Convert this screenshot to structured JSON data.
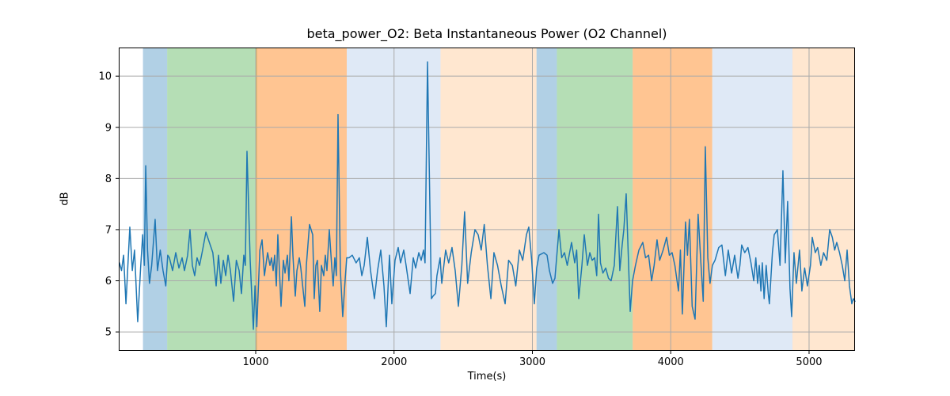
{
  "title": "beta_power_O2: Beta Instantaneous Power (O2 Channel)",
  "chart_data": {
    "type": "line",
    "title": "beta_power_O2: Beta Instantaneous Power (O2 Channel)",
    "xlabel": "Time(s)",
    "ylabel": "dB",
    "xlim": [
      10,
      5332
    ],
    "ylim": [
      4.63,
      10.56
    ],
    "xticks": [
      1000,
      2000,
      3000,
      4000,
      5000
    ],
    "yticks": [
      5,
      6,
      7,
      8,
      9,
      10
    ],
    "grid": true,
    "grid_color": "#aaaaaa",
    "line_color": "#1f77b4",
    "spine_color": "#000000",
    "bands": [
      {
        "color_name": "blue",
        "color": "rgba(31,119,180,0.35)",
        "start": 185,
        "end": 360
      },
      {
        "color_name": "green",
        "color": "rgba(44,160,44,0.35)",
        "start": 360,
        "end": 1010
      },
      {
        "color_name": "orange",
        "color": "rgba(255,127,14,0.45)",
        "start": 1000,
        "end": 1658
      },
      {
        "color_name": "light-blue",
        "color": "rgba(174,199,232,0.40)",
        "start": 1658,
        "end": 2336
      },
      {
        "color_name": "light-orange",
        "color": "rgba(255,187,120,0.35)",
        "start": 2336,
        "end": 3030
      },
      {
        "color_name": "blue",
        "color": "rgba(31,119,180,0.35)",
        "start": 3030,
        "end": 3177
      },
      {
        "color_name": "green",
        "color": "rgba(44,160,44,0.35)",
        "start": 3177,
        "end": 3725
      },
      {
        "color_name": "orange",
        "color": "rgba(255,127,14,0.45)",
        "start": 3725,
        "end": 4300
      },
      {
        "color_name": "light-blue",
        "color": "rgba(174,199,232,0.40)",
        "start": 4300,
        "end": 4880
      },
      {
        "color_name": "light-orange",
        "color": "rgba(255,187,120,0.35)",
        "start": 4880,
        "end": 5332
      }
    ],
    "series": [
      {
        "name": "beta_power_O2",
        "points": [
          [
            15,
            6.35
          ],
          [
            30,
            6.2
          ],
          [
            45,
            6.5
          ],
          [
            62,
            5.55
          ],
          [
            90,
            7.05
          ],
          [
            108,
            6.2
          ],
          [
            124,
            6.6
          ],
          [
            147,
            5.2
          ],
          [
            168,
            6.25
          ],
          [
            183,
            6.9
          ],
          [
            195,
            6.3
          ],
          [
            205,
            8.25
          ],
          [
            218,
            6.6
          ],
          [
            232,
            5.95
          ],
          [
            248,
            6.3
          ],
          [
            273,
            7.2
          ],
          [
            290,
            6.2
          ],
          [
            310,
            6.6
          ],
          [
            330,
            6.2
          ],
          [
            350,
            5.9
          ],
          [
            364,
            6.5
          ],
          [
            376,
            6.45
          ],
          [
            399,
            6.2
          ],
          [
            422,
            6.55
          ],
          [
            445,
            6.25
          ],
          [
            468,
            6.45
          ],
          [
            485,
            6.2
          ],
          [
            508,
            6.5
          ],
          [
            525,
            7.0
          ],
          [
            542,
            6.3
          ],
          [
            559,
            6.1
          ],
          [
            576,
            6.45
          ],
          [
            594,
            6.3
          ],
          [
            616,
            6.6
          ],
          [
            640,
            6.95
          ],
          [
            665,
            6.75
          ],
          [
            690,
            6.55
          ],
          [
            714,
            5.9
          ],
          [
            731,
            6.5
          ],
          [
            748,
            5.95
          ],
          [
            766,
            6.4
          ],
          [
            783,
            6.1
          ],
          [
            800,
            6.5
          ],
          [
            817,
            6.2
          ],
          [
            840,
            5.6
          ],
          [
            860,
            6.4
          ],
          [
            880,
            6.2
          ],
          [
            897,
            5.75
          ],
          [
            914,
            6.5
          ],
          [
            925,
            6.3
          ],
          [
            937,
            8.53
          ],
          [
            960,
            6.4
          ],
          [
            983,
            5.05
          ],
          [
            995,
            5.9
          ],
          [
            1008,
            5.1
          ],
          [
            1030,
            6.6
          ],
          [
            1046,
            6.8
          ],
          [
            1063,
            6.1
          ],
          [
            1086,
            6.55
          ],
          [
            1103,
            6.3
          ],
          [
            1114,
            6.45
          ],
          [
            1126,
            6.2
          ],
          [
            1137,
            6.5
          ],
          [
            1149,
            5.9
          ],
          [
            1160,
            6.9
          ],
          [
            1183,
            5.5
          ],
          [
            1200,
            6.4
          ],
          [
            1212,
            6.15
          ],
          [
            1229,
            6.5
          ],
          [
            1240,
            6.0
          ],
          [
            1258,
            7.25
          ],
          [
            1269,
            6.5
          ],
          [
            1286,
            5.7
          ],
          [
            1298,
            6.2
          ],
          [
            1315,
            6.45
          ],
          [
            1326,
            6.25
          ],
          [
            1355,
            5.5
          ],
          [
            1366,
            6.3
          ],
          [
            1389,
            7.1
          ],
          [
            1412,
            6.9
          ],
          [
            1423,
            5.65
          ],
          [
            1435,
            6.3
          ],
          [
            1446,
            6.4
          ],
          [
            1463,
            5.4
          ],
          [
            1475,
            6.3
          ],
          [
            1492,
            6.1
          ],
          [
            1503,
            6.5
          ],
          [
            1515,
            6.2
          ],
          [
            1532,
            7.0
          ],
          [
            1549,
            6.3
          ],
          [
            1560,
            5.9
          ],
          [
            1572,
            6.45
          ],
          [
            1583,
            6.1
          ],
          [
            1595,
            9.25
          ],
          [
            1612,
            6.2
          ],
          [
            1629,
            5.3
          ],
          [
            1646,
            6.0
          ],
          [
            1658,
            6.45
          ],
          [
            1675,
            6.45
          ],
          [
            1698,
            6.5
          ],
          [
            1726,
            6.35
          ],
          [
            1749,
            6.45
          ],
          [
            1767,
            6.1
          ],
          [
            1784,
            6.3
          ],
          [
            1807,
            6.85
          ],
          [
            1830,
            6.2
          ],
          [
            1858,
            5.65
          ],
          [
            1881,
            6.2
          ],
          [
            1904,
            6.6
          ],
          [
            1927,
            5.9
          ],
          [
            1944,
            5.1
          ],
          [
            1967,
            6.5
          ],
          [
            1984,
            5.55
          ],
          [
            2007,
            6.4
          ],
          [
            2030,
            6.65
          ],
          [
            2047,
            6.35
          ],
          [
            2070,
            6.6
          ],
          [
            2087,
            6.3
          ],
          [
            2116,
            5.75
          ],
          [
            2139,
            6.45
          ],
          [
            2156,
            6.25
          ],
          [
            2179,
            6.55
          ],
          [
            2196,
            6.4
          ],
          [
            2213,
            6.6
          ],
          [
            2224,
            6.35
          ],
          [
            2242,
            10.28
          ],
          [
            2270,
            5.65
          ],
          [
            2282,
            5.7
          ],
          [
            2299,
            5.75
          ],
          [
            2310,
            6.1
          ],
          [
            2333,
            6.45
          ],
          [
            2345,
            5.95
          ],
          [
            2373,
            6.6
          ],
          [
            2395,
            6.35
          ],
          [
            2419,
            6.65
          ],
          [
            2442,
            6.2
          ],
          [
            2465,
            5.5
          ],
          [
            2490,
            6.3
          ],
          [
            2510,
            7.35
          ],
          [
            2532,
            5.95
          ],
          [
            2558,
            6.55
          ],
          [
            2585,
            7.0
          ],
          [
            2608,
            6.9
          ],
          [
            2630,
            6.6
          ],
          [
            2652,
            7.1
          ],
          [
            2675,
            6.3
          ],
          [
            2700,
            5.65
          ],
          [
            2722,
            6.55
          ],
          [
            2748,
            6.3
          ],
          [
            2775,
            5.9
          ],
          [
            2803,
            5.55
          ],
          [
            2828,
            6.4
          ],
          [
            2855,
            6.3
          ],
          [
            2880,
            5.9
          ],
          [
            2906,
            6.6
          ],
          [
            2930,
            6.4
          ],
          [
            2957,
            6.9
          ],
          [
            2974,
            7.05
          ],
          [
            2995,
            6.4
          ],
          [
            3014,
            5.55
          ],
          [
            3031,
            6.25
          ],
          [
            3048,
            6.5
          ],
          [
            3083,
            6.55
          ],
          [
            3106,
            6.5
          ],
          [
            3123,
            6.2
          ],
          [
            3146,
            5.95
          ],
          [
            3163,
            6.05
          ],
          [
            3192,
            7.0
          ],
          [
            3212,
            6.45
          ],
          [
            3232,
            6.55
          ],
          [
            3252,
            6.3
          ],
          [
            3283,
            6.75
          ],
          [
            3306,
            6.35
          ],
          [
            3320,
            6.6
          ],
          [
            3335,
            5.65
          ],
          [
            3358,
            6.3
          ],
          [
            3375,
            6.9
          ],
          [
            3398,
            6.3
          ],
          [
            3415,
            6.55
          ],
          [
            3432,
            6.4
          ],
          [
            3450,
            6.45
          ],
          [
            3465,
            6.1
          ],
          [
            3478,
            7.3
          ],
          [
            3492,
            6.35
          ],
          [
            3510,
            6.15
          ],
          [
            3530,
            6.25
          ],
          [
            3550,
            6.05
          ],
          [
            3569,
            6.0
          ],
          [
            3592,
            6.3
          ],
          [
            3615,
            7.45
          ],
          [
            3632,
            6.2
          ],
          [
            3649,
            6.7
          ],
          [
            3661,
            7.0
          ],
          [
            3678,
            7.7
          ],
          [
            3707,
            5.4
          ],
          [
            3724,
            6.0
          ],
          [
            3745,
            6.3
          ],
          [
            3770,
            6.6
          ],
          [
            3798,
            6.75
          ],
          [
            3818,
            6.45
          ],
          [
            3840,
            6.5
          ],
          [
            3862,
            6.0
          ],
          [
            3880,
            6.3
          ],
          [
            3901,
            6.8
          ],
          [
            3920,
            6.4
          ],
          [
            3945,
            6.6
          ],
          [
            3970,
            6.85
          ],
          [
            3990,
            6.5
          ],
          [
            4010,
            6.55
          ],
          [
            4030,
            6.3
          ],
          [
            4056,
            5.8
          ],
          [
            4070,
            6.6
          ],
          [
            4084,
            5.35
          ],
          [
            4107,
            7.15
          ],
          [
            4121,
            6.5
          ],
          [
            4135,
            7.2
          ],
          [
            4155,
            5.5
          ],
          [
            4176,
            5.25
          ],
          [
            4198,
            7.3
          ],
          [
            4218,
            6.35
          ],
          [
            4235,
            5.6
          ],
          [
            4250,
            8.62
          ],
          [
            4268,
            6.45
          ],
          [
            4284,
            5.95
          ],
          [
            4301,
            6.3
          ],
          [
            4320,
            6.4
          ],
          [
            4347,
            6.65
          ],
          [
            4370,
            6.7
          ],
          [
            4395,
            6.1
          ],
          [
            4416,
            6.6
          ],
          [
            4440,
            6.15
          ],
          [
            4462,
            6.5
          ],
          [
            4486,
            6.05
          ],
          [
            4500,
            6.3
          ],
          [
            4513,
            6.7
          ],
          [
            4535,
            6.55
          ],
          [
            4558,
            6.65
          ],
          [
            4580,
            6.35
          ],
          [
            4600,
            6.0
          ],
          [
            4615,
            6.45
          ],
          [
            4628,
            5.95
          ],
          [
            4640,
            6.3
          ],
          [
            4652,
            5.8
          ],
          [
            4662,
            6.35
          ],
          [
            4675,
            5.65
          ],
          [
            4690,
            6.3
          ],
          [
            4705,
            5.75
          ],
          [
            4713,
            5.55
          ],
          [
            4735,
            6.55
          ],
          [
            4748,
            6.9
          ],
          [
            4771,
            7.0
          ],
          [
            4790,
            6.3
          ],
          [
            4811,
            8.15
          ],
          [
            4828,
            6.35
          ],
          [
            4845,
            7.55
          ],
          [
            4862,
            5.85
          ],
          [
            4874,
            5.3
          ],
          [
            4891,
            6.55
          ],
          [
            4908,
            5.95
          ],
          [
            4931,
            6.6
          ],
          [
            4948,
            5.8
          ],
          [
            4968,
            6.25
          ],
          [
            4988,
            5.9
          ],
          [
            5010,
            6.3
          ],
          [
            5023,
            6.85
          ],
          [
            5045,
            6.55
          ],
          [
            5062,
            6.65
          ],
          [
            5085,
            6.3
          ],
          [
            5105,
            6.55
          ],
          [
            5128,
            6.4
          ],
          [
            5149,
            7.0
          ],
          [
            5168,
            6.85
          ],
          [
            5185,
            6.6
          ],
          [
            5200,
            6.75
          ],
          [
            5220,
            6.55
          ],
          [
            5240,
            6.3
          ],
          [
            5258,
            6.0
          ],
          [
            5275,
            6.6
          ],
          [
            5292,
            5.9
          ],
          [
            5309,
            5.55
          ],
          [
            5320,
            5.65
          ],
          [
            5332,
            5.6
          ]
        ]
      }
    ]
  }
}
